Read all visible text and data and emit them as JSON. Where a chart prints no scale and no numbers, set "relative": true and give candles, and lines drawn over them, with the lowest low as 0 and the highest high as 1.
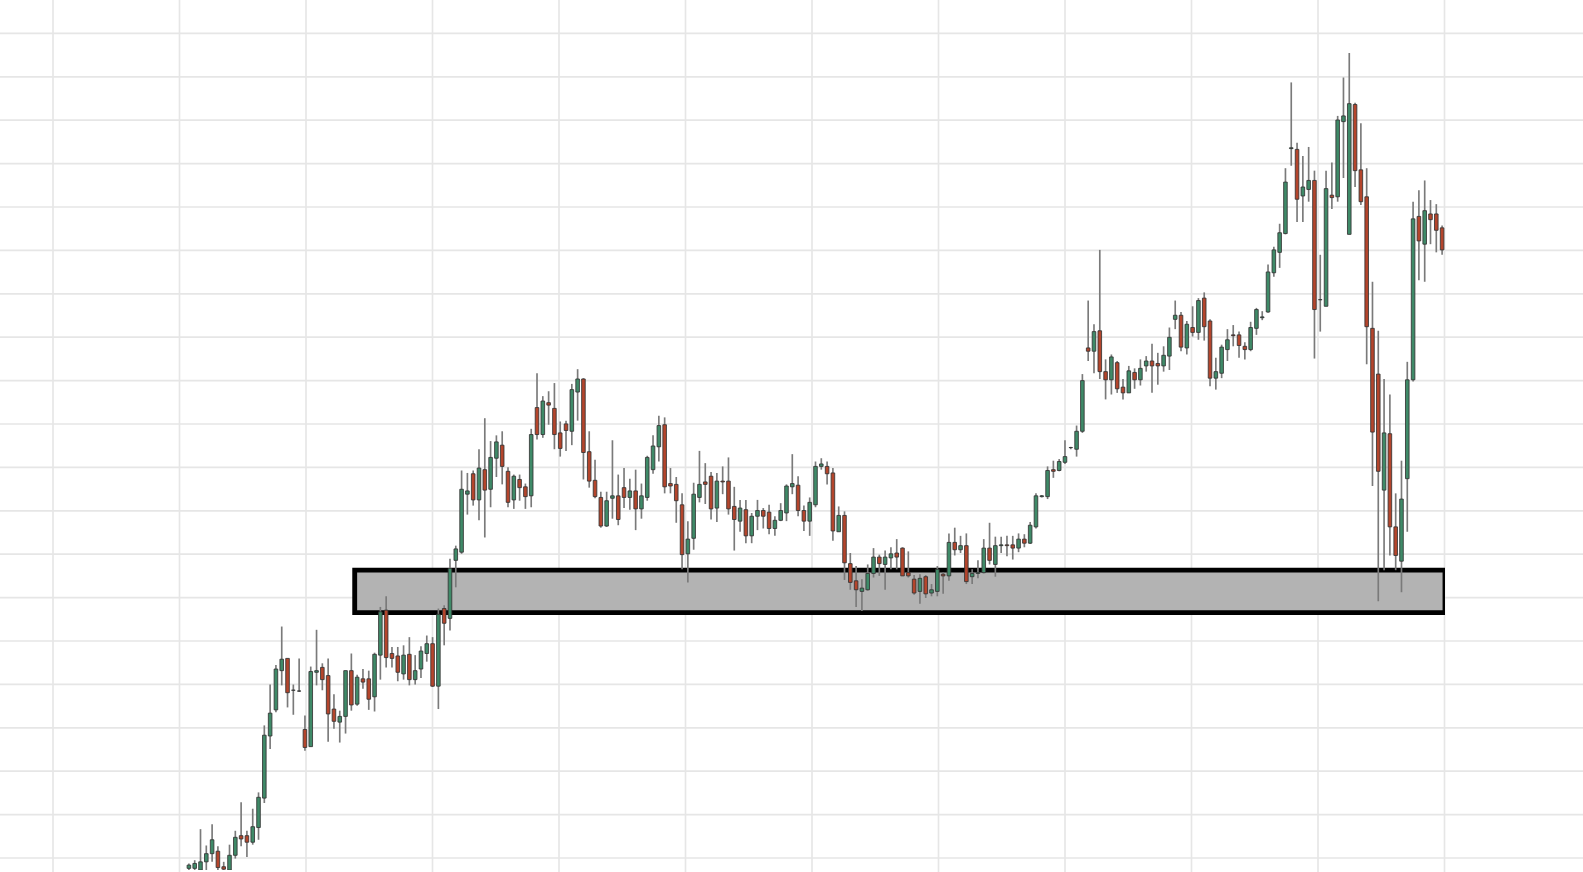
{
  "chart_data": {
    "type": "candlestick",
    "relative": true,
    "grid": true,
    "colors": [
      "#3f8a68",
      "#3f8a68",
      "#3f8a68",
      "#3f8a68",
      "#3f8a68",
      "#b4452c",
      "#b4452c",
      "#3f8a68",
      "#3f8a68",
      "#b4452c",
      "#b4452c",
      "#3f8a68",
      "#3f8a68",
      "#3f8a68",
      "#3f8a68",
      "#3f8a68",
      "#3f8a68",
      "#b4452c",
      "#3f8a68",
      "#3f8a68",
      "#b4452c",
      "#3f8a68",
      "#3f8a68",
      "#b4452c",
      "#b4452c",
      "#b4452c",
      "#3f8a68",
      "#3f8a68",
      "#b4452c",
      "#3f8a68",
      "#b4452c",
      "#b4452c",
      "#3f8a68",
      "#3f8a68",
      "#b4452c",
      "#b4452c",
      "#b4452c",
      "#3f8a68",
      "#b4452c",
      "#3f8a68",
      "#3f8a68",
      "#3f8a68",
      "#b4452c",
      "#3f8a68",
      "#b4452c",
      "#3f8a68",
      "#3f8a68",
      "#3f8a68",
      "#3f8a68",
      "#b4452c",
      "#3f8a68",
      "#b4452c",
      "#3f8a68",
      "#3f8a68",
      "#b4452c",
      "#b4452c",
      "#3f8a68",
      "#b4452c",
      "#b4452c",
      "#3f8a68",
      "#b4452c",
      "#3f8a68",
      "#b4452c",
      "#b4452c",
      "#b4452c",
      "#b4452c",
      "#3f8a68",
      "#3f8a68",
      "#b4452c",
      "#b4452c",
      "#b4452c",
      "#b4452c",
      "#3f8a68",
      "#3f8a68",
      "#b4452c",
      "#b4452c",
      "#3f8a68",
      "#b4452c",
      "#3f8a68",
      "#3f8a68",
      "#3f8a68",
      "#3f8a68",
      "#b4452c",
      "#b4452c",
      "#b4452c",
      "#b4452c",
      "#3f8a68",
      "#3f8a68",
      "#3f8a68",
      "#b4452c",
      "#b4452c",
      "#3f8a68",
      "#b4452c",
      "#b4452c",
      "#b4452c",
      "#3f8a68",
      "#b4452c",
      "#3f8a68",
      "#3f8a68",
      "#b4452c",
      "#b4452c",
      "#3f8a68",
      "#3f8a68",
      "#3f8a68",
      "#3f8a68",
      "#b4452c",
      "#b4452c",
      "#3f8a68",
      "#3f8a68",
      "#3f8a68",
      "#b4452c",
      "#b4452c",
      "#3f8a68",
      "#b4452c",
      "#b4452c",
      "#b4452c",
      "#3f8a68",
      "#3f8a68",
      "#3f8a68",
      "#b4452c",
      "#3f8a68",
      "#3f8a68",
      "#b4452c",
      "#b4452c",
      "#b4452c",
      "#b4452c",
      "#3f8a68",
      "#b4452c",
      "#3f8a68",
      "#3f8a68",
      "#b4452c",
      "#3f8a68",
      "#b4452c",
      "#3f8a68",
      "#b4452c",
      "#3f8a68",
      "#3f8a68",
      "#3f8a68",
      "#b4452c",
      "#3f8a68",
      "#3f8a68",
      "#b4452c",
      "#b4452c",
      "#3f8a68",
      "#b4452c",
      "#3f8a68",
      "#3f8a68",
      "#3f8a68",
      "#3f8a68",
      "#b4452c",
      "#3f8a68",
      "#3f8a68",
      "#3f8a68",
      "#3f8a68",
      "#3f8a68",
      "#b4452c",
      "#3f8a68",
      "#b4452c",
      "#b4452c",
      "#3f8a68",
      "#b4452c",
      "#b4452c",
      "#3f8a68",
      "#b4452c",
      "#3f8a68",
      "#3f8a68",
      "#b4452c",
      "#b4452c",
      "#3f8a68",
      "#3f8a68",
      "#3f8a68",
      "#b4452c",
      "#3f8a68",
      "#b4452c",
      "#3f8a68",
      "#b4452c",
      "#b4452c",
      "#3f8a68",
      "#3f8a68",
      "#3f8a68",
      "#b4452c",
      "#b4452c",
      "#b4452c",
      "#3f8a68",
      "#3f8a68",
      "#3f8a68",
      "#3f8a68",
      "#3f8a68",
      "#3f8a68",
      "#3f8a68",
      "#3f8a68",
      "#b4452c",
      "#3f8a68",
      "#3f8a68",
      "#b4452c",
      "#3f8a68",
      "#3f8a68",
      "#b4452c",
      "#3f8a68",
      "#3f8a68",
      "#3f8a68",
      "#b4452c",
      "#b4452c",
      "#b4452c",
      "#b4452c",
      "#b4452c",
      "#3f8a68",
      "#b4452c",
      "#b4452c",
      "#3f8a68",
      "#3f8a68",
      "#3f8a68",
      "#b4452c",
      "#3f8a68",
      "#b4452c",
      "#b4452c",
      "#b4452c"
    ],
    "categories": [
      null,
      null,
      null,
      null,
      null,
      null,
      null,
      null,
      null,
      null,
      null,
      null,
      null,
      null,
      null,
      null,
      null,
      null,
      null,
      null,
      null,
      null,
      null,
      null,
      null,
      null,
      null,
      null,
      null,
      null,
      null,
      null,
      null,
      null,
      null,
      null,
      null,
      null,
      null,
      null,
      null,
      null,
      null,
      null,
      null,
      null,
      null,
      null,
      null,
      null,
      null,
      null,
      null,
      null,
      null,
      null,
      null,
      null,
      null,
      null,
      null,
      null,
      null,
      null,
      null,
      null,
      null,
      null,
      null,
      null,
      null,
      null,
      null,
      null,
      null,
      null,
      null,
      null,
      null,
      null,
      null,
      null,
      null,
      null,
      null,
      null,
      null,
      null,
      null,
      null,
      null,
      null,
      null,
      null,
      null,
      null,
      null,
      null,
      null,
      null,
      null,
      null,
      null,
      null,
      null,
      null,
      null,
      null,
      null,
      null,
      null,
      null,
      null,
      null,
      null,
      null,
      null,
      null,
      null,
      null,
      null,
      null,
      null,
      null,
      null,
      null,
      null,
      null,
      null,
      null,
      null,
      null,
      null,
      null,
      null,
      null,
      null,
      null,
      null,
      null,
      null,
      null,
      null,
      null,
      null,
      null,
      null,
      null,
      null,
      null,
      null,
      null,
      null,
      null,
      null,
      null,
      null,
      null,
      null,
      null,
      null,
      null,
      null,
      null,
      null,
      null,
      null,
      null,
      null,
      null,
      null,
      null,
      null,
      null,
      null,
      null,
      null,
      null,
      null,
      null,
      null,
      null,
      null,
      null,
      null,
      null,
      null,
      null,
      null,
      null,
      null,
      null,
      null,
      null,
      null,
      null,
      null,
      null,
      null,
      null,
      null,
      null,
      null,
      null,
      null,
      null,
      null,
      null,
      null,
      null,
      null,
      null,
      null,
      null,
      null,
      null,
      null
    ],
    "ohlc": [
      [
        0.002,
        0.008,
        0.0,
        0.006
      ],
      [
        0.002,
        0.012,
        0.0,
        0.008
      ],
      [
        0.0,
        0.05,
        0.0,
        0.01
      ],
      [
        0.01,
        0.03,
        0.0,
        0.02
      ],
      [
        0.02,
        0.056,
        0.01,
        0.037
      ],
      [
        0.023,
        0.029,
        0.0,
        0.003
      ],
      [
        0.004,
        0.01,
        0.0,
        0.001
      ],
      [
        0.0,
        0.031,
        0.0,
        0.018
      ],
      [
        0.018,
        0.048,
        0.014,
        0.04
      ],
      [
        0.042,
        0.083,
        0.029,
        0.038
      ],
      [
        0.042,
        0.048,
        0.016,
        0.034
      ],
      [
        0.034,
        0.075,
        0.031,
        0.053
      ],
      [
        0.052,
        0.095,
        0.037,
        0.089
      ],
      [
        0.088,
        0.177,
        0.082,
        0.165
      ],
      [
        0.164,
        0.227,
        0.148,
        0.192
      ],
      [
        0.196,
        0.251,
        0.193,
        0.246
      ],
      [
        0.244,
        0.298,
        0.226,
        0.258
      ],
      [
        0.259,
        0.259,
        0.199,
        0.217
      ],
      [
        0.22,
        0.227,
        0.19,
        0.22
      ],
      [
        0.219,
        0.259,
        0.218,
        0.219
      ],
      [
        0.172,
        0.189,
        0.146,
        0.15
      ],
      [
        0.151,
        0.249,
        0.151,
        0.243
      ],
      [
        0.242,
        0.294,
        0.226,
        0.244
      ],
      [
        0.248,
        0.253,
        0.22,
        0.233
      ],
      [
        0.238,
        0.259,
        0.157,
        0.191
      ],
      [
        0.197,
        0.215,
        0.173,
        0.182
      ],
      [
        0.181,
        0.195,
        0.156,
        0.188
      ],
      [
        0.188,
        0.244,
        0.167,
        0.244
      ],
      [
        0.244,
        0.265,
        0.195,
        0.202
      ],
      [
        0.203,
        0.239,
        0.201,
        0.236
      ],
      [
        0.234,
        0.246,
        0.222,
        0.23
      ],
      [
        0.234,
        0.244,
        0.196,
        0.209
      ],
      [
        0.212,
        0.266,
        0.194,
        0.264
      ],
      [
        0.263,
        0.322,
        0.233,
        0.316
      ],
      [
        0.318,
        0.335,
        0.248,
        0.26
      ],
      [
        0.265,
        0.273,
        0.248,
        0.259
      ],
      [
        0.262,
        0.273,
        0.231,
        0.242
      ],
      [
        0.24,
        0.275,
        0.233,
        0.263
      ],
      [
        0.264,
        0.285,
        0.226,
        0.233
      ],
      [
        0.233,
        0.263,
        0.227,
        0.244
      ],
      [
        0.246,
        0.274,
        0.235,
        0.268
      ],
      [
        0.265,
        0.287,
        0.255,
        0.277
      ],
      [
        0.277,
        0.285,
        0.224,
        0.225
      ],
      [
        0.225,
        0.32,
        0.197,
        0.313
      ],
      [
        0.32,
        0.324,
        0.275,
        0.302
      ],
      [
        0.308,
        0.381,
        0.293,
        0.369
      ],
      [
        0.379,
        0.397,
        0.346,
        0.393
      ],
      [
        0.389,
        0.489,
        0.387,
        0.466
      ],
      [
        0.46,
        0.486,
        0.435,
        0.464
      ],
      [
        0.485,
        0.489,
        0.446,
        0.453
      ],
      [
        0.453,
        0.515,
        0.428,
        0.492
      ],
      [
        0.49,
        0.553,
        0.407,
        0.465
      ],
      [
        0.466,
        0.525,
        0.444,
        0.505
      ],
      [
        0.504,
        0.532,
        0.481,
        0.524
      ],
      [
        0.52,
        0.537,
        0.472,
        0.494
      ],
      [
        0.488,
        0.493,
        0.444,
        0.45
      ],
      [
        0.453,
        0.484,
        0.442,
        0.482
      ],
      [
        0.478,
        0.484,
        0.452,
        0.468
      ],
      [
        0.469,
        0.473,
        0.442,
        0.457
      ],
      [
        0.458,
        0.54,
        0.444,
        0.533
      ],
      [
        0.566,
        0.608,
        0.527,
        0.533
      ],
      [
        0.533,
        0.58,
        0.529,
        0.574
      ],
      [
        0.572,
        0.586,
        0.545,
        0.569
      ],
      [
        0.565,
        0.596,
        0.515,
        0.533
      ],
      [
        0.535,
        0.549,
        0.506,
        0.516
      ],
      [
        0.546,
        0.55,
        0.513,
        0.538
      ],
      [
        0.537,
        0.595,
        0.52,
        0.588
      ],
      [
        0.585,
        0.613,
        0.55,
        0.601
      ],
      [
        0.601,
        0.602,
        0.478,
        0.511
      ],
      [
        0.512,
        0.537,
        0.468,
        0.476
      ],
      [
        0.477,
        0.502,
        0.455,
        0.457
      ],
      [
        0.456,
        0.463,
        0.419,
        0.421
      ],
      [
        0.421,
        0.463,
        0.42,
        0.452
      ],
      [
        0.455,
        0.526,
        0.43,
        0.458
      ],
      [
        0.458,
        0.484,
        0.422,
        0.429
      ],
      [
        0.468,
        0.492,
        0.443,
        0.456
      ],
      [
        0.456,
        0.479,
        0.441,
        0.464
      ],
      [
        0.464,
        0.49,
        0.416,
        0.442
      ],
      [
        0.442,
        0.473,
        0.43,
        0.458
      ],
      [
        0.456,
        0.507,
        0.452,
        0.505
      ],
      [
        0.49,
        0.532,
        0.485,
        0.519
      ],
      [
        0.518,
        0.556,
        0.5,
        0.544
      ],
      [
        0.545,
        0.554,
        0.461,
        0.469
      ],
      [
        0.473,
        0.492,
        0.461,
        0.47
      ],
      [
        0.472,
        0.481,
        0.425,
        0.452
      ],
      [
        0.447,
        0.461,
        0.368,
        0.386
      ],
      [
        0.387,
        0.427,
        0.352,
        0.405
      ],
      [
        0.406,
        0.474,
        0.392,
        0.46
      ],
      [
        0.456,
        0.513,
        0.45,
        0.472
      ],
      [
        0.475,
        0.498,
        0.448,
        0.472
      ],
      [
        0.482,
        0.487,
        0.429,
        0.442
      ],
      [
        0.443,
        0.486,
        0.426,
        0.476
      ],
      [
        0.476,
        0.494,
        0.46,
        0.475
      ],
      [
        0.476,
        0.505,
        0.435,
        0.442
      ],
      [
        0.445,
        0.469,
        0.391,
        0.429
      ],
      [
        0.427,
        0.453,
        0.414,
        0.443
      ],
      [
        0.441,
        0.453,
        0.4,
        0.409
      ],
      [
        0.409,
        0.437,
        0.4,
        0.433
      ],
      [
        0.433,
        0.453,
        0.416,
        0.44
      ],
      [
        0.44,
        0.443,
        0.418,
        0.433
      ],
      [
        0.438,
        0.447,
        0.411,
        0.418
      ],
      [
        0.418,
        0.433,
        0.409,
        0.428
      ],
      [
        0.428,
        0.449,
        0.427,
        0.44
      ],
      [
        0.437,
        0.472,
        0.427,
        0.47
      ],
      [
        0.469,
        0.509,
        0.46,
        0.473
      ],
      [
        0.471,
        0.482,
        0.433,
        0.44
      ],
      [
        0.44,
        0.446,
        0.415,
        0.427
      ],
      [
        0.427,
        0.456,
        0.409,
        0.45
      ],
      [
        0.447,
        0.5,
        0.444,
        0.494
      ],
      [
        0.494,
        0.504,
        0.49,
        0.497
      ],
      [
        0.494,
        0.5,
        0.472,
        0.485
      ],
      [
        0.486,
        0.492,
        0.403,
        0.415
      ],
      [
        0.414,
        0.445,
        0.414,
        0.434
      ],
      [
        0.434,
        0.439,
        0.355,
        0.376
      ],
      [
        0.375,
        0.388,
        0.343,
        0.352
      ],
      [
        0.354,
        0.372,
        0.322,
        0.343
      ],
      [
        0.341,
        0.356,
        0.317,
        0.345
      ],
      [
        0.343,
        0.374,
        0.342,
        0.363
      ],
      [
        0.363,
        0.394,
        0.358,
        0.383
      ],
      [
        0.383,
        0.386,
        0.36,
        0.375
      ],
      [
        0.374,
        0.391,
        0.343,
        0.383
      ],
      [
        0.382,
        0.395,
        0.368,
        0.387
      ],
      [
        0.388,
        0.405,
        0.368,
        0.383
      ],
      [
        0.394,
        0.395,
        0.36,
        0.36
      ],
      [
        0.364,
        0.39,
        0.358,
        0.36
      ],
      [
        0.356,
        0.361,
        0.337,
        0.339
      ],
      [
        0.341,
        0.362,
        0.326,
        0.357
      ],
      [
        0.359,
        0.361,
        0.333,
        0.338
      ],
      [
        0.339,
        0.35,
        0.335,
        0.343
      ],
      [
        0.341,
        0.372,
        0.335,
        0.368
      ],
      [
        0.362,
        0.364,
        0.338,
        0.36
      ],
      [
        0.36,
        0.412,
        0.354,
        0.401
      ],
      [
        0.401,
        0.419,
        0.385,
        0.392
      ],
      [
        0.392,
        0.409,
        0.388,
        0.397
      ],
      [
        0.397,
        0.412,
        0.35,
        0.353
      ],
      [
        0.359,
        0.368,
        0.35,
        0.363
      ],
      [
        0.363,
        0.379,
        0.357,
        0.364
      ],
      [
        0.364,
        0.405,
        0.363,
        0.394
      ],
      [
        0.394,
        0.425,
        0.374,
        0.379
      ],
      [
        0.374,
        0.408,
        0.359,
        0.397
      ],
      [
        0.397,
        0.408,
        0.388,
        0.398
      ],
      [
        0.398,
        0.409,
        0.384,
        0.397
      ],
      [
        0.398,
        0.409,
        0.38,
        0.394
      ],
      [
        0.394,
        0.412,
        0.389,
        0.405
      ],
      [
        0.405,
        0.411,
        0.395,
        0.4
      ],
      [
        0.4,
        0.426,
        0.399,
        0.422
      ],
      [
        0.42,
        0.461,
        0.418,
        0.458
      ],
      [
        0.457,
        0.459,
        0.456,
        0.458
      ],
      [
        0.457,
        0.494,
        0.454,
        0.489
      ],
      [
        0.49,
        0.501,
        0.48,
        0.488
      ],
      [
        0.489,
        0.503,
        0.488,
        0.5
      ],
      [
        0.499,
        0.526,
        0.497,
        0.506
      ],
      [
        0.517,
        0.518,
        0.515,
        0.517
      ],
      [
        0.515,
        0.544,
        0.506,
        0.537
      ],
      [
        0.537,
        0.607,
        0.535,
        0.599
      ],
      [
        0.639,
        0.697,
        0.623,
        0.635
      ],
      [
        0.635,
        0.668,
        0.608,
        0.659
      ],
      [
        0.66,
        0.759,
        0.601,
        0.61
      ],
      [
        0.61,
        0.625,
        0.576,
        0.6
      ],
      [
        0.6,
        0.631,
        0.582,
        0.628
      ],
      [
        0.621,
        0.623,
        0.584,
        0.589
      ],
      [
        0.591,
        0.601,
        0.576,
        0.584
      ],
      [
        0.584,
        0.617,
        0.584,
        0.611
      ],
      [
        0.609,
        0.614,
        0.589,
        0.6
      ],
      [
        0.6,
        0.625,
        0.593,
        0.614
      ],
      [
        0.617,
        0.629,
        0.61,
        0.623
      ],
      [
        0.623,
        0.644,
        0.584,
        0.617
      ],
      [
        0.62,
        0.633,
        0.594,
        0.617
      ],
      [
        0.617,
        0.641,
        0.61,
        0.63
      ],
      [
        0.629,
        0.664,
        0.612,
        0.652
      ],
      [
        0.674,
        0.697,
        0.662,
        0.679
      ],
      [
        0.679,
        0.683,
        0.635,
        0.64
      ],
      [
        0.639,
        0.672,
        0.631,
        0.668
      ],
      [
        0.664,
        0.69,
        0.653,
        0.658
      ],
      [
        0.658,
        0.7,
        0.649,
        0.697
      ],
      [
        0.7,
        0.707,
        0.648,
        0.665
      ],
      [
        0.672,
        0.674,
        0.592,
        0.602
      ],
      [
        0.602,
        0.627,
        0.588,
        0.61
      ],
      [
        0.608,
        0.643,
        0.602,
        0.64
      ],
      [
        0.637,
        0.662,
        0.623,
        0.649
      ],
      [
        0.655,
        0.667,
        0.641,
        0.654
      ],
      [
        0.655,
        0.659,
        0.627,
        0.642
      ],
      [
        0.641,
        0.646,
        0.625,
        0.637
      ],
      [
        0.637,
        0.671,
        0.635,
        0.664
      ],
      [
        0.663,
        0.688,
        0.655,
        0.686
      ],
      [
        0.676,
        0.684,
        0.673,
        0.677
      ],
      [
        0.683,
        0.741,
        0.682,
        0.732
      ],
      [
        0.731,
        0.763,
        0.726,
        0.759
      ],
      [
        0.756,
        0.791,
        0.737,
        0.78
      ],
      [
        0.779,
        0.859,
        0.778,
        0.842
      ],
      [
        0.883,
        0.964,
        0.862,
        0.884
      ],
      [
        0.882,
        0.89,
        0.793,
        0.821
      ],
      [
        0.825,
        0.874,
        0.793,
        0.836
      ],
      [
        0.833,
        0.885,
        0.818,
        0.844
      ],
      [
        0.844,
        0.856,
        0.626,
        0.686
      ],
      [
        0.698,
        0.753,
        0.659,
        0.698
      ],
      [
        0.69,
        0.856,
        0.69,
        0.834
      ],
      [
        0.826,
        0.866,
        0.809,
        0.823
      ],
      [
        0.824,
        0.923,
        0.818,
        0.918
      ],
      [
        0.916,
        0.97,
        0.847,
        0.923
      ],
      [
        0.778,
        1.0,
        0.778,
        0.938
      ],
      [
        0.937,
        0.939,
        0.836,
        0.856
      ],
      [
        0.857,
        0.914,
        0.814,
        0.818
      ],
      [
        0.824,
        0.859,
        0.619,
        0.665
      ],
      [
        0.663,
        0.72,
        0.47,
        0.536
      ],
      [
        0.607,
        0.66,
        0.329,
        0.488
      ],
      [
        0.465,
        0.601,
        0.367,
        0.535
      ],
      [
        0.534,
        0.582,
        0.385,
        0.42
      ],
      [
        0.42,
        0.461,
        0.367,
        0.385
      ],
      [
        0.378,
        0.501,
        0.34,
        0.454
      ],
      [
        0.479,
        0.622,
        0.414,
        0.6
      ],
      [
        0.6,
        0.818,
        0.598,
        0.797
      ],
      [
        0.8,
        0.832,
        0.722,
        0.77
      ],
      [
        0.766,
        0.844,
        0.72,
        0.807
      ],
      [
        0.803,
        0.82,
        0.766,
        0.796
      ],
      [
        0.803,
        0.815,
        0.756,
        0.783
      ],
      [
        0.786,
        0.789,
        0.753,
        0.759
      ]
    ],
    "bands": [
      {
        "axis": "y",
        "from": 0.315,
        "to": 0.367,
        "color": "#b3b3b3"
      }
    ]
  }
}
